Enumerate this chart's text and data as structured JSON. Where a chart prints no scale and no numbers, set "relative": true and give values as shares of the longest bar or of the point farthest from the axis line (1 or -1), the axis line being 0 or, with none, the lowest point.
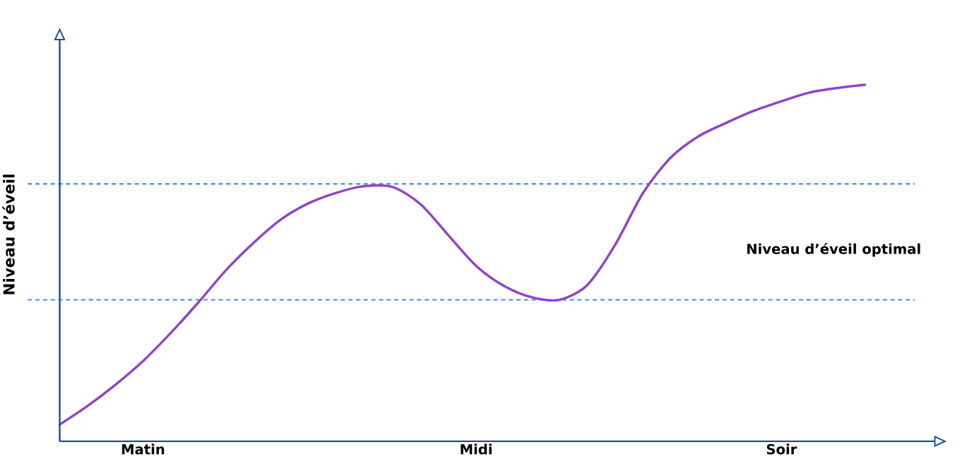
{
  "chart_data": {
    "type": "line",
    "relative": true,
    "ylabel": "Niveau d’éveil",
    "categories": [
      null,
      null,
      null,
      "Matin",
      null,
      null,
      null,
      null,
      null,
      null,
      null,
      null,
      null,
      null,
      null,
      "Midi",
      null,
      null,
      null,
      null,
      null,
      null,
      null,
      null,
      null,
      null,
      "Soir",
      null,
      null,
      null
    ],
    "series": [
      {
        "color": "#8e44c8",
        "values": [
          0.047,
          0.099,
          0.158,
          0.225,
          0.304,
          0.39,
          0.481,
          0.558,
          0.624,
          0.669,
          0.698,
          0.716,
          0.713,
          0.665,
          0.578,
          0.492,
          0.436,
          0.404,
          0.397,
          0.438,
          0.55,
          0.695,
          0.795,
          0.855,
          0.893,
          0.927,
          0.954,
          0.978,
          0.991,
          1.0
        ]
      }
    ],
    "ref_lines": [
      {
        "axis": "y",
        "value": 0.722,
        "color": "#4a86e0",
        "line_style": "dashed"
      },
      {
        "axis": "y",
        "value": 0.397,
        "color": "#4a86e0",
        "line_style": "dashed"
      }
    ],
    "annotations": [
      "Niveau d’éveil optimal"
    ],
    "grid": false
  }
}
